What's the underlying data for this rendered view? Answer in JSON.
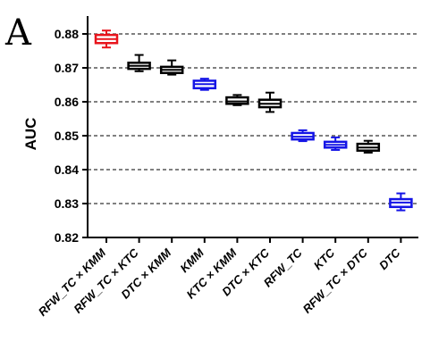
{
  "panel_label": "A",
  "chart_data": {
    "type": "boxplot",
    "title": "",
    "xlabel": "",
    "ylabel": "AUC",
    "ylim": [
      0.82,
      0.88
    ],
    "yticks": [
      0.82,
      0.83,
      0.84,
      0.85,
      0.86,
      0.87,
      0.88
    ],
    "ytick_labels": [
      "0.82",
      "0.83",
      "0.84",
      "0.85",
      "0.86",
      "0.87",
      "0.88"
    ],
    "grid": "horizontal-dashed",
    "categories": [
      "RFW_TC × KMM",
      "RFW_TC × KTC",
      "DTC × KMM",
      "KMM",
      "KTC × KMM",
      "DTC × KTC",
      "RFW_TC",
      "KTC",
      "RFW_TC × DTC",
      "DTC"
    ],
    "boxes": [
      {
        "min": 0.876,
        "q1": 0.8773,
        "median": 0.8785,
        "q3": 0.8797,
        "max": 0.881,
        "color": "#e8141c"
      },
      {
        "min": 0.869,
        "q1": 0.8697,
        "median": 0.8706,
        "q3": 0.8715,
        "max": 0.8738,
        "color": "#000000"
      },
      {
        "min": 0.868,
        "q1": 0.8685,
        "median": 0.8694,
        "q3": 0.8703,
        "max": 0.8722,
        "color": "#000000"
      },
      {
        "min": 0.8635,
        "q1": 0.864,
        "median": 0.8652,
        "q3": 0.8662,
        "max": 0.8668,
        "color": "#1414e6"
      },
      {
        "min": 0.859,
        "q1": 0.8594,
        "median": 0.8601,
        "q3": 0.8613,
        "max": 0.862,
        "color": "#000000"
      },
      {
        "min": 0.857,
        "q1": 0.8584,
        "median": 0.8594,
        "q3": 0.8606,
        "max": 0.8627,
        "color": "#000000"
      },
      {
        "min": 0.8484,
        "q1": 0.8489,
        "median": 0.8497,
        "q3": 0.8508,
        "max": 0.8516,
        "color": "#1414e6"
      },
      {
        "min": 0.8458,
        "q1": 0.8465,
        "median": 0.8473,
        "q3": 0.8482,
        "max": 0.8495,
        "color": "#1414e6"
      },
      {
        "min": 0.845,
        "q1": 0.8456,
        "median": 0.8465,
        "q3": 0.8476,
        "max": 0.8485,
        "color": "#000000"
      },
      {
        "min": 0.828,
        "q1": 0.829,
        "median": 0.8303,
        "q3": 0.8313,
        "max": 0.833,
        "color": "#1414e6"
      }
    ]
  }
}
